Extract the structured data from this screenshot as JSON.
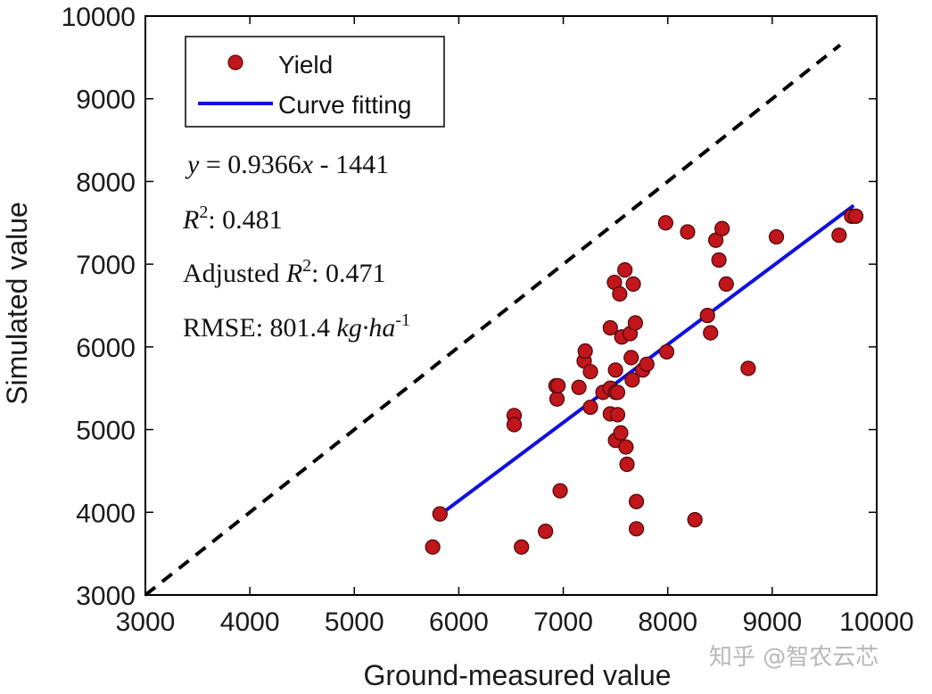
{
  "chart_data": {
    "type": "scatter",
    "xlabel": "Ground-measured value",
    "ylabel": "Simulated value",
    "xlim": [
      3000,
      10000
    ],
    "ylim": [
      3000,
      10000
    ],
    "xticks": [
      "3000",
      "4000",
      "5000",
      "6000",
      "7000",
      "8000",
      "9000",
      "10000"
    ],
    "yticks": [
      "3000",
      "4000",
      "5000",
      "6000",
      "7000",
      "8000",
      "9000",
      "10000"
    ],
    "grid": false,
    "legend_position": "top-left",
    "legend": [
      {
        "label": "Yield",
        "marker": "circle",
        "color": "#c0161c"
      },
      {
        "label": "Curve fitting",
        "marker": "line",
        "color": "#1010e0"
      }
    ],
    "series": [
      {
        "name": "Yield",
        "color": "#c0161c",
        "points": [
          [
            5750,
            3580
          ],
          [
            5820,
            3980
          ],
          [
            6530,
            5170
          ],
          [
            6530,
            5060
          ],
          [
            6600,
            3580
          ],
          [
            6830,
            3770
          ],
          [
            6930,
            5530
          ],
          [
            6940,
            5370
          ],
          [
            6950,
            5530
          ],
          [
            6970,
            4260
          ],
          [
            7150,
            5510
          ],
          [
            7200,
            5830
          ],
          [
            7210,
            5950
          ],
          [
            7260,
            5700
          ],
          [
            7260,
            5270
          ],
          [
            7380,
            5450
          ],
          [
            7450,
            5500
          ],
          [
            7450,
            6230
          ],
          [
            7450,
            5190
          ],
          [
            7490,
            6780
          ],
          [
            7500,
            5720
          ],
          [
            7500,
            5450
          ],
          [
            7500,
            4870
          ],
          [
            7520,
            5180
          ],
          [
            7520,
            5450
          ],
          [
            7540,
            6640
          ],
          [
            7550,
            4960
          ],
          [
            7560,
            6120
          ],
          [
            7590,
            6930
          ],
          [
            7600,
            4790
          ],
          [
            7610,
            4580
          ],
          [
            7640,
            6160
          ],
          [
            7650,
            5870
          ],
          [
            7660,
            5600
          ],
          [
            7670,
            6760
          ],
          [
            7690,
            6290
          ],
          [
            7700,
            4130
          ],
          [
            7700,
            3800
          ],
          [
            7760,
            5720
          ],
          [
            7800,
            5790
          ],
          [
            7990,
            5940
          ],
          [
            7980,
            7500
          ],
          [
            8190,
            7390
          ],
          [
            8260,
            3910
          ],
          [
            8380,
            6380
          ],
          [
            8410,
            6170
          ],
          [
            8460,
            7290
          ],
          [
            8490,
            7050
          ],
          [
            8520,
            7430
          ],
          [
            8560,
            6760
          ],
          [
            8770,
            5740
          ],
          [
            9040,
            7330
          ],
          [
            9640,
            7350
          ],
          [
            9760,
            7580
          ],
          [
            9800,
            7580
          ]
        ]
      },
      {
        "name": "Curve fitting",
        "type": "line",
        "color": "#1010e0",
        "x": [
          5820,
          9780
        ],
        "y": [
          3970,
          7710
        ]
      },
      {
        "type": "line",
        "style": "dashed",
        "color": "#000000",
        "x": [
          3000,
          9650
        ],
        "y": [
          3000,
          9650
        ]
      }
    ],
    "annotations": {
      "equation": {
        "y": "y",
        "eq": " = 0.9366",
        "x": "x",
        "rest": " - 1441"
      },
      "r2": {
        "r": "R",
        "sup": "2",
        "text": ": 0.481"
      },
      "adj_r2": {
        "prefix": "Adjusted ",
        "r": "R",
        "sup": "2",
        "text": ": 0.471"
      },
      "rmse": {
        "prefix": "RMSE: 801.4 ",
        "unit": "kg·ha",
        "sup": "-1"
      }
    }
  },
  "watermark": "知乎 @智农云芯"
}
